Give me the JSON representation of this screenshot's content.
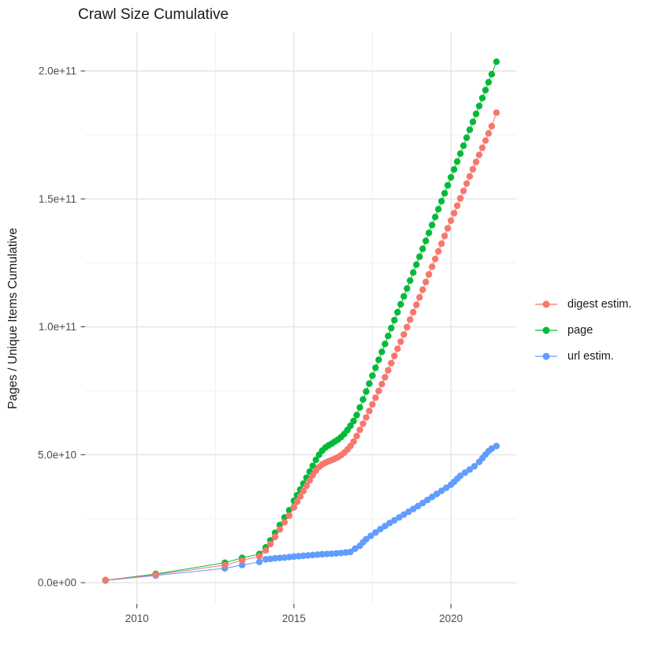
{
  "title": "Crawl Size Cumulative",
  "axes": {
    "y_title": "Pages / Unique Items Cumulative",
    "y_ticks": [
      {
        "label": "0.0e+00",
        "value_billions": 0
      },
      {
        "label": "5.0e+10",
        "value_billions": 50
      },
      {
        "label": "1.0e+11",
        "value_billions": 100
      },
      {
        "label": "1.5e+11",
        "value_billions": 150
      },
      {
        "label": "2.0e+11",
        "value_billions": 200
      }
    ],
    "y_minor_billions": [
      25,
      75,
      125,
      175
    ],
    "x_ticks": [
      {
        "label": "2010",
        "year": 2010
      },
      {
        "label": "2015",
        "year": 2015
      },
      {
        "label": "2020",
        "year": 2020
      }
    ],
    "x_minor_years": [
      2012.5,
      2017.5
    ]
  },
  "legend": {
    "position": "right",
    "items": [
      {
        "label": "digest estim.",
        "color": "#F8766D"
      },
      {
        "label": "page",
        "color": "#00BA38"
      },
      {
        "label": "url estim.",
        "color": "#619CFF"
      }
    ]
  },
  "colors": {
    "grid_major": "#E4E4E4",
    "grid_minor": "#F0F0F0",
    "axis_text": "#4D4D4D",
    "tick_mark": "#333333",
    "digest": "#F8766D",
    "page": "#00BA38",
    "url": "#619CFF"
  },
  "chart_data": {
    "type": "scatter-line",
    "title": "Crawl Size Cumulative",
    "xlabel": "",
    "ylabel": "Pages / Unique Items Cumulative",
    "x_unit": "year (decimal, one point per crawl)",
    "y_unit": "billions of pages / unique items (1e9), cumulative",
    "xlim": [
      2008.35,
      2022.08
    ],
    "ylim_billions": [
      -8.3,
      215.1
    ],
    "grid": true,
    "legend_position": "right",
    "draw_order": [
      "url estim.",
      "page",
      "digest estim."
    ],
    "series": [
      {
        "name": "url estim.",
        "color": "#619CFF",
        "points_year_billions": [
          [
            2009.0,
            0.85
          ],
          [
            2010.6,
            2.8
          ],
          [
            2012.8,
            5.6
          ],
          [
            2013.35,
            6.9
          ],
          [
            2013.9,
            8.1
          ],
          [
            2014.1,
            9.1
          ],
          [
            2014.25,
            9.3
          ],
          [
            2014.4,
            9.5
          ],
          [
            2014.55,
            9.65
          ],
          [
            2014.7,
            9.8
          ],
          [
            2014.85,
            10.0
          ],
          [
            2015.0,
            10.2
          ],
          [
            2015.15,
            10.35
          ],
          [
            2015.3,
            10.5
          ],
          [
            2015.45,
            10.65
          ],
          [
            2015.6,
            10.8
          ],
          [
            2015.75,
            10.95
          ],
          [
            2015.9,
            11.1
          ],
          [
            2016.05,
            11.2
          ],
          [
            2016.2,
            11.3
          ],
          [
            2016.35,
            11.45
          ],
          [
            2016.5,
            11.6
          ],
          [
            2016.65,
            11.8
          ],
          [
            2016.8,
            12.0
          ],
          [
            2016.95,
            13.3
          ],
          [
            2017.1,
            14.4
          ],
          [
            2017.2,
            15.8
          ],
          [
            2017.3,
            17.0
          ],
          [
            2017.45,
            18.3
          ],
          [
            2017.6,
            19.6
          ],
          [
            2017.75,
            20.9
          ],
          [
            2017.9,
            22.1
          ],
          [
            2018.05,
            23.3
          ],
          [
            2018.2,
            24.4
          ],
          [
            2018.35,
            25.5
          ],
          [
            2018.5,
            26.6
          ],
          [
            2018.65,
            27.7
          ],
          [
            2018.8,
            28.8
          ],
          [
            2018.95,
            29.9
          ],
          [
            2019.1,
            31.1
          ],
          [
            2019.25,
            32.3
          ],
          [
            2019.4,
            33.5
          ],
          [
            2019.55,
            34.7
          ],
          [
            2019.7,
            35.9
          ],
          [
            2019.85,
            37.1
          ],
          [
            2020.0,
            38.3
          ],
          [
            2020.1,
            39.4
          ],
          [
            2020.2,
            40.6
          ],
          [
            2020.3,
            41.8
          ],
          [
            2020.45,
            43.0
          ],
          [
            2020.6,
            44.2
          ],
          [
            2020.75,
            45.5
          ],
          [
            2020.9,
            47.2
          ],
          [
            2021.0,
            48.6
          ],
          [
            2021.1,
            50.1
          ],
          [
            2021.2,
            51.4
          ],
          [
            2021.3,
            52.4
          ],
          [
            2021.45,
            53.4
          ]
        ]
      },
      {
        "name": "page",
        "color": "#00BA38",
        "points_year_billions": [
          [
            2009.0,
            0.95
          ],
          [
            2010.6,
            3.4
          ],
          [
            2012.8,
            7.8
          ],
          [
            2013.35,
            9.7
          ],
          [
            2013.9,
            11.2
          ],
          [
            2014.1,
            13.8
          ],
          [
            2014.25,
            16.5
          ],
          [
            2014.4,
            19.5
          ],
          [
            2014.55,
            22.5
          ],
          [
            2014.7,
            25.5
          ],
          [
            2014.85,
            28.3
          ],
          [
            2015.0,
            32.0
          ],
          [
            2015.1,
            34.2
          ],
          [
            2015.2,
            36.4
          ],
          [
            2015.3,
            38.7
          ],
          [
            2015.4,
            41.0
          ],
          [
            2015.5,
            43.4
          ],
          [
            2015.6,
            45.7
          ],
          [
            2015.7,
            48.0
          ],
          [
            2015.8,
            50.0
          ],
          [
            2015.9,
            51.6
          ],
          [
            2016.0,
            52.8
          ],
          [
            2016.1,
            53.6
          ],
          [
            2016.2,
            54.3
          ],
          [
            2016.3,
            55.1
          ],
          [
            2016.4,
            55.9
          ],
          [
            2016.5,
            56.9
          ],
          [
            2016.6,
            58.1
          ],
          [
            2016.7,
            59.6
          ],
          [
            2016.8,
            61.3
          ],
          [
            2016.9,
            63.2
          ],
          [
            2017.0,
            65.5
          ],
          [
            2017.1,
            68.5
          ],
          [
            2017.2,
            71.6
          ],
          [
            2017.3,
            74.7
          ],
          [
            2017.4,
            77.8
          ],
          [
            2017.5,
            80.9
          ],
          [
            2017.6,
            84.0
          ],
          [
            2017.7,
            87.1
          ],
          [
            2017.8,
            90.2
          ],
          [
            2017.9,
            93.3
          ],
          [
            2018.0,
            96.4
          ],
          [
            2018.1,
            99.5
          ],
          [
            2018.2,
            102.6
          ],
          [
            2018.3,
            105.7
          ],
          [
            2018.4,
            108.8
          ],
          [
            2018.5,
            111.9
          ],
          [
            2018.6,
            115.0
          ],
          [
            2018.7,
            118.1
          ],
          [
            2018.8,
            121.2
          ],
          [
            2018.9,
            124.3
          ],
          [
            2019.0,
            127.4
          ],
          [
            2019.1,
            130.5
          ],
          [
            2019.2,
            133.6
          ],
          [
            2019.3,
            136.7
          ],
          [
            2019.4,
            139.8
          ],
          [
            2019.5,
            142.9
          ],
          [
            2019.6,
            146.0
          ],
          [
            2019.7,
            149.1
          ],
          [
            2019.8,
            152.2
          ],
          [
            2019.9,
            155.3
          ],
          [
            2020.0,
            158.4
          ],
          [
            2020.1,
            161.5
          ],
          [
            2020.2,
            164.6
          ],
          [
            2020.3,
            167.7
          ],
          [
            2020.4,
            170.8
          ],
          [
            2020.5,
            173.9
          ],
          [
            2020.6,
            177.0
          ],
          [
            2020.7,
            180.1
          ],
          [
            2020.8,
            183.2
          ],
          [
            2020.9,
            186.3
          ],
          [
            2021.0,
            189.4
          ],
          [
            2021.1,
            192.5
          ],
          [
            2021.2,
            195.6
          ],
          [
            2021.3,
            198.7
          ],
          [
            2021.45,
            203.6
          ]
        ]
      },
      {
        "name": "digest estim.",
        "color": "#F8766D",
        "points_year_billions": [
          [
            2009.0,
            1.05
          ],
          [
            2010.6,
            3.1
          ],
          [
            2012.8,
            6.9
          ],
          [
            2013.35,
            8.7
          ],
          [
            2013.9,
            10.3
          ],
          [
            2014.1,
            12.6
          ],
          [
            2014.25,
            15.1
          ],
          [
            2014.4,
            17.9
          ],
          [
            2014.55,
            20.8
          ],
          [
            2014.7,
            23.6
          ],
          [
            2014.85,
            26.2
          ],
          [
            2015.0,
            29.4
          ],
          [
            2015.1,
            31.6
          ],
          [
            2015.2,
            33.7
          ],
          [
            2015.3,
            35.8
          ],
          [
            2015.4,
            37.9
          ],
          [
            2015.5,
            40.0
          ],
          [
            2015.6,
            42.0
          ],
          [
            2015.7,
            43.8
          ],
          [
            2015.8,
            45.2
          ],
          [
            2015.9,
            46.2
          ],
          [
            2016.0,
            46.9
          ],
          [
            2016.1,
            47.4
          ],
          [
            2016.2,
            47.9
          ],
          [
            2016.3,
            48.4
          ],
          [
            2016.4,
            49.0
          ],
          [
            2016.5,
            49.8
          ],
          [
            2016.6,
            50.8
          ],
          [
            2016.7,
            52.0
          ],
          [
            2016.8,
            53.4
          ],
          [
            2016.9,
            55.1
          ],
          [
            2017.0,
            57.3
          ],
          [
            2017.1,
            59.7
          ],
          [
            2017.2,
            62.1
          ],
          [
            2017.3,
            64.6
          ],
          [
            2017.4,
            67.1
          ],
          [
            2017.5,
            69.7
          ],
          [
            2017.6,
            72.3
          ],
          [
            2017.7,
            74.9
          ],
          [
            2017.8,
            77.6
          ],
          [
            2017.9,
            80.3
          ],
          [
            2018.0,
            83.0
          ],
          [
            2018.1,
            85.8
          ],
          [
            2018.2,
            88.6
          ],
          [
            2018.3,
            91.4
          ],
          [
            2018.4,
            94.2
          ],
          [
            2018.5,
            97.0
          ],
          [
            2018.6,
            99.9
          ],
          [
            2018.7,
            102.8
          ],
          [
            2018.8,
            105.7
          ],
          [
            2018.9,
            108.6
          ],
          [
            2019.0,
            111.5
          ],
          [
            2019.1,
            114.5
          ],
          [
            2019.2,
            117.5
          ],
          [
            2019.3,
            120.5
          ],
          [
            2019.4,
            123.5
          ],
          [
            2019.5,
            126.5
          ],
          [
            2019.6,
            129.5
          ],
          [
            2019.7,
            132.5
          ],
          [
            2019.8,
            135.5
          ],
          [
            2019.9,
            138.5
          ],
          [
            2020.0,
            141.5
          ],
          [
            2020.1,
            144.4
          ],
          [
            2020.2,
            147.3
          ],
          [
            2020.3,
            150.2
          ],
          [
            2020.4,
            153.1
          ],
          [
            2020.5,
            156.0
          ],
          [
            2020.6,
            158.8
          ],
          [
            2020.7,
            161.6
          ],
          [
            2020.8,
            164.4
          ],
          [
            2020.9,
            167.2
          ],
          [
            2021.0,
            170.0
          ],
          [
            2021.1,
            172.8
          ],
          [
            2021.2,
            175.6
          ],
          [
            2021.3,
            178.4
          ],
          [
            2021.45,
            183.7
          ]
        ]
      }
    ]
  }
}
